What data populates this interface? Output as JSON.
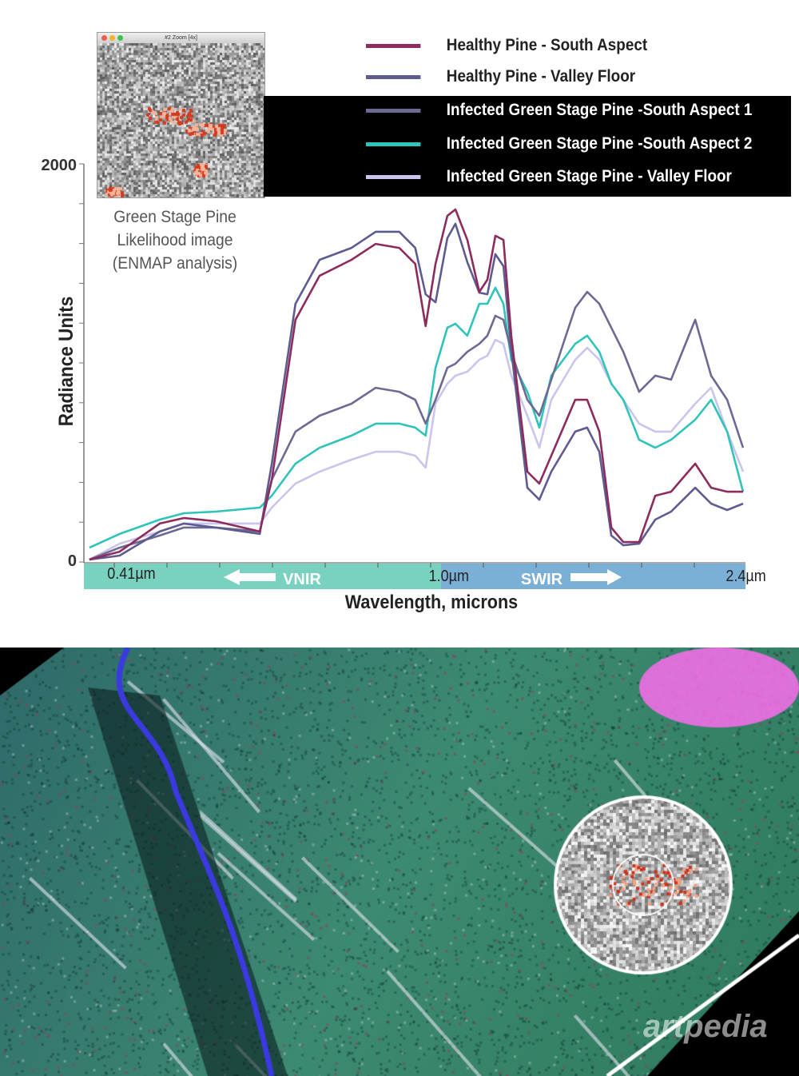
{
  "inset": {
    "title": "#2 Zoom [4x]"
  },
  "annotation": [
    "Green Stage Pine",
    "Likelihood image",
    "(ENMAP analysis)"
  ],
  "watermark": "artpedia",
  "chart_data": {
    "type": "line",
    "title": "",
    "xlabel": "Wavelength, microns",
    "ylabel": "Radiance Units",
    "ylim": [
      0,
      2000
    ],
    "xlim": [
      0.35,
      2.4
    ],
    "y_ticks": [
      "0",
      "2000"
    ],
    "x_ticks": [
      "0.41µm",
      "1.0µm",
      "2.4µm"
    ],
    "regions": [
      {
        "label": "VNIR",
        "range": [
          0.35,
          1.0
        ],
        "color": "#79d2bf"
      },
      {
        "label": "SWIR",
        "range": [
          1.0,
          2.4
        ],
        "color": "#7bb0d6"
      }
    ],
    "legend_placement": "top-right",
    "x": [
      0.36,
      0.415,
      0.488,
      0.532,
      0.59,
      0.67,
      0.692,
      0.735,
      0.779,
      0.837,
      0.881,
      0.924,
      0.953,
      0.972,
      0.99,
      1.029,
      1.066,
      1.121,
      1.176,
      1.213,
      1.25,
      1.287,
      1.323,
      1.397,
      1.452,
      1.507,
      1.617,
      1.672,
      1.728,
      1.783,
      1.838,
      1.911,
      1.985,
      2.058,
      2.169,
      2.242,
      2.316,
      2.389
    ],
    "series": [
      {
        "name": "Healthy Pine - South Aspect",
        "color": "#8c2b5c",
        "values": [
          12,
          52,
          193,
          221,
          205,
          153,
          414,
          1217,
          1438,
          1518,
          1598,
          1578,
          1498,
          1185,
          1498,
          1739,
          1771,
          1618,
          1357,
          1418,
          1639,
          1618,
          1137,
          454,
          394,
          534,
          815,
          815,
          655,
          173,
          100,
          100,
          333,
          353,
          494,
          373,
          353,
          353
        ]
      },
      {
        "name": "Healthy Pine - Valley Floor",
        "color": "#5e5b91",
        "values": [
          12,
          32,
          153,
          193,
          173,
          141,
          494,
          1297,
          1518,
          1578,
          1659,
          1659,
          1578,
          1345,
          1305,
          1627,
          1699,
          1506,
          1353,
          1345,
          1546,
          1486,
          1064,
          373,
          313,
          454,
          655,
          675,
          554,
          133,
          84,
          92,
          213,
          253,
          373,
          293,
          261,
          293
        ]
      },
      {
        "name": "Infected Green Stage Pine -South Aspect 1",
        "color": "#6c6a93",
        "values": [
          12,
          72,
          133,
          173,
          173,
          153,
          414,
          655,
          735,
          795,
          875,
          855,
          815,
          695,
          815,
          976,
          996,
          1056,
          1096,
          1137,
          1237,
          1217,
          1056,
          815,
          735,
          916,
          1277,
          1357,
          1297,
          1177,
          1056,
          855,
          936,
          916,
          1217,
          936,
          815,
          574
        ]
      },
      {
        "name": "Infected Green Stage Pine -South Aspect 2",
        "color": "#2fc4b9",
        "values": [
          72,
          141,
          213,
          245,
          253,
          273,
          333,
          494,
          574,
          635,
          695,
          695,
          675,
          635,
          976,
          1177,
          1197,
          1137,
          1297,
          1297,
          1378,
          1297,
          1016,
          855,
          675,
          936,
          1096,
          1137,
          1056,
          896,
          815,
          614,
          574,
          614,
          715,
          815,
          655,
          353
        ]
      },
      {
        "name": "Infected Green Stage Pine - Valley Floor",
        "color": "#c9c5ec",
        "values": [
          12,
          92,
          153,
          193,
          193,
          193,
          273,
          394,
          454,
          514,
          554,
          554,
          534,
          474,
          795,
          896,
          936,
          956,
          1016,
          1036,
          1116,
          1096,
          936,
          735,
          574,
          815,
          1016,
          1076,
          1016,
          896,
          815,
          695,
          655,
          655,
          795,
          876,
          655,
          454
        ]
      }
    ]
  }
}
